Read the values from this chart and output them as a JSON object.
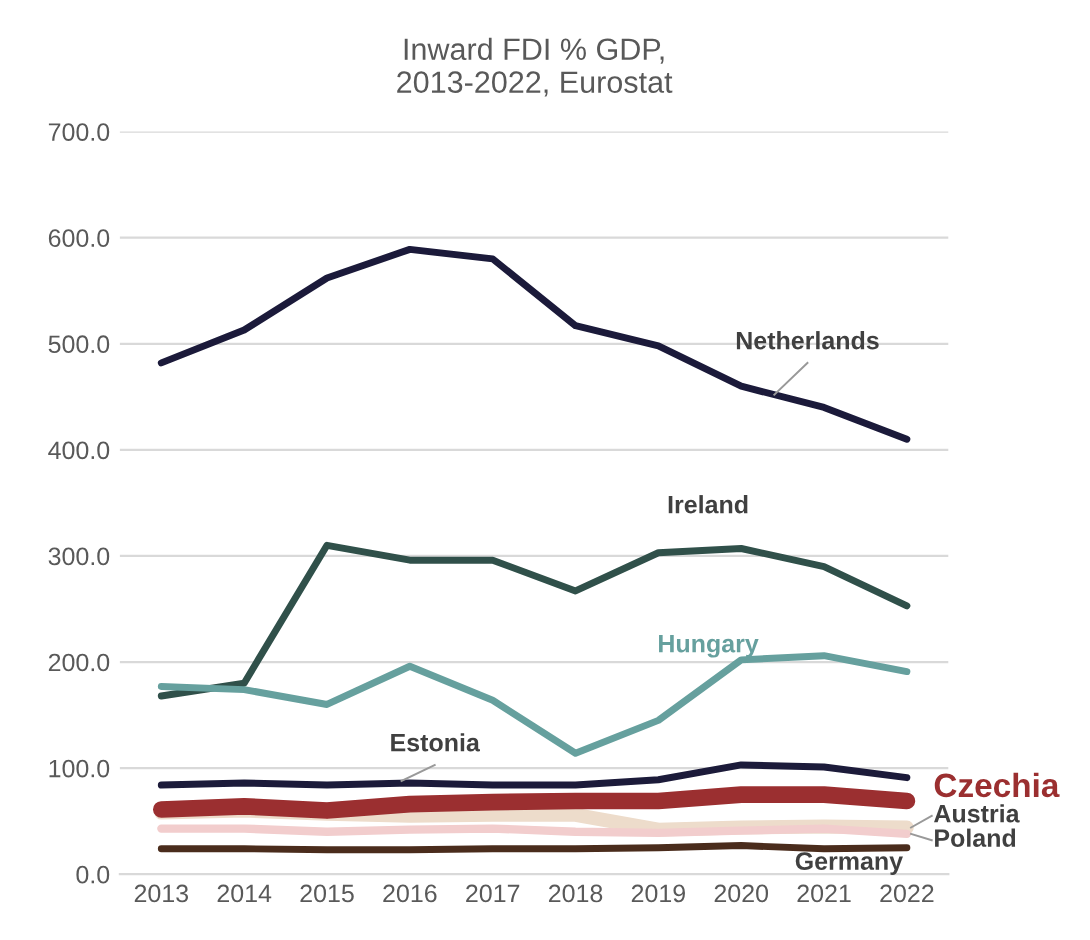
{
  "chart_data": {
    "type": "line",
    "title": "Inward FDI % GDP,\n2013-2022, Eurostat",
    "categories": [
      "2013",
      "2014",
      "2015",
      "2016",
      "2017",
      "2018",
      "2019",
      "2020",
      "2021",
      "2022"
    ],
    "series": [
      {
        "name": "Netherlands",
        "color": "#1b1a3a",
        "values": [
          482,
          513,
          562,
          589,
          580,
          517,
          498,
          460,
          440,
          410
        ]
      },
      {
        "name": "Ireland",
        "color": "#30504a",
        "values": [
          168,
          180,
          310,
          296,
          296,
          267,
          303,
          307,
          290,
          253
        ]
      },
      {
        "name": "Hungary",
        "color": "#66a09e",
        "values": [
          177,
          174,
          160,
          196,
          164,
          114,
          145,
          202,
          206,
          191
        ]
      },
      {
        "name": "Estonia",
        "color": "#1c1b3a",
        "values": [
          84,
          86,
          84,
          86,
          84,
          84,
          89,
          103,
          101,
          91
        ]
      },
      {
        "name": "Austria",
        "color": "#eddccb",
        "values": [
          58,
          60,
          57,
          55,
          56,
          56,
          42,
          44,
          45,
          44
        ]
      },
      {
        "name": "Poland",
        "color": "#f2cdcd",
        "values": [
          43,
          43,
          40,
          42,
          43,
          40,
          39,
          41,
          43,
          38
        ]
      },
      {
        "name": "Czechia",
        "color": "#9b2f30",
        "values": [
          61,
          64,
          60,
          66,
          68,
          69,
          69,
          75,
          75,
          69
        ]
      },
      {
        "name": "Germany",
        "color": "#4a2c1c",
        "values": [
          24,
          24,
          23,
          23,
          24,
          24,
          25,
          27,
          24,
          25
        ]
      }
    ],
    "ylim": [
      0,
      700
    ],
    "yticks": [
      {
        "value": 0,
        "label": "0.0"
      },
      {
        "value": 100,
        "label": "100.0"
      },
      {
        "value": 200,
        "label": "200.0"
      },
      {
        "value": 300,
        "label": "300.0"
      },
      {
        "value": 400,
        "label": "400.0"
      },
      {
        "value": 500,
        "label": "500.0"
      },
      {
        "value": 600,
        "label": "600.0"
      },
      {
        "value": 700,
        "label": "700.0"
      }
    ],
    "grid": "y",
    "legend": false,
    "marker": "none",
    "line_style": "solid"
  }
}
